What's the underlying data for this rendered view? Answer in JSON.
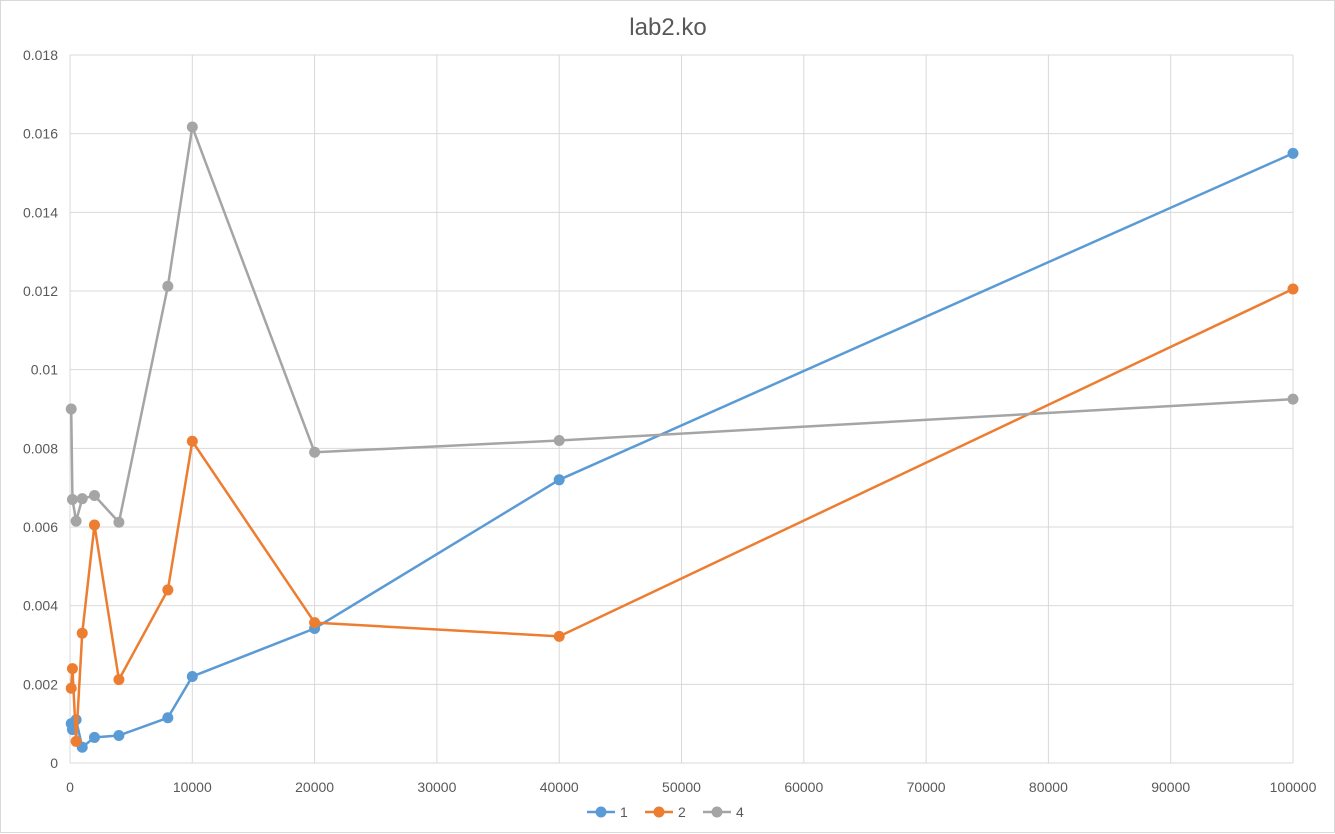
{
  "chart_data": {
    "type": "scatter",
    "title": "lab2.ko",
    "xlabel": "",
    "ylabel": "",
    "xlim": [
      0,
      100000
    ],
    "ylim": [
      0,
      0.018
    ],
    "x_ticks": [
      0,
      10000,
      20000,
      30000,
      40000,
      50000,
      60000,
      70000,
      80000,
      90000,
      100000
    ],
    "y_ticks": [
      0,
      0.002,
      0.004,
      0.006,
      0.008,
      0.01,
      0.012,
      0.014,
      0.016,
      0.018
    ],
    "grid": true,
    "legend": "bottom",
    "series": [
      {
        "name": "1",
        "color": "#5b9bd5",
        "x": [
          100,
          200,
          500,
          1000,
          2000,
          4000,
          8000,
          10000,
          20000,
          40000,
          100000
        ],
        "y": [
          0.001,
          0.00085,
          0.0011,
          0.0004,
          0.00065,
          0.0007,
          0.00115,
          0.0022,
          0.00342,
          0.0072,
          0.0155
        ]
      },
      {
        "name": "2",
        "color": "#ed7d31",
        "x": [
          100,
          200,
          500,
          1000,
          2000,
          4000,
          8000,
          10000,
          20000,
          40000,
          100000
        ],
        "y": [
          0.0019,
          0.0024,
          0.00055,
          0.0033,
          0.00605,
          0.00212,
          0.0044,
          0.00818,
          0.00357,
          0.00322,
          0.01205
        ]
      },
      {
        "name": "4",
        "color": "#a5a5a5",
        "x": [
          100,
          200,
          500,
          1000,
          2000,
          4000,
          8000,
          10000,
          20000,
          40000,
          100000
        ],
        "y": [
          0.009,
          0.0067,
          0.00615,
          0.00672,
          0.0068,
          0.00612,
          0.01212,
          0.01617,
          0.0079,
          0.0082,
          0.00925
        ]
      }
    ]
  }
}
